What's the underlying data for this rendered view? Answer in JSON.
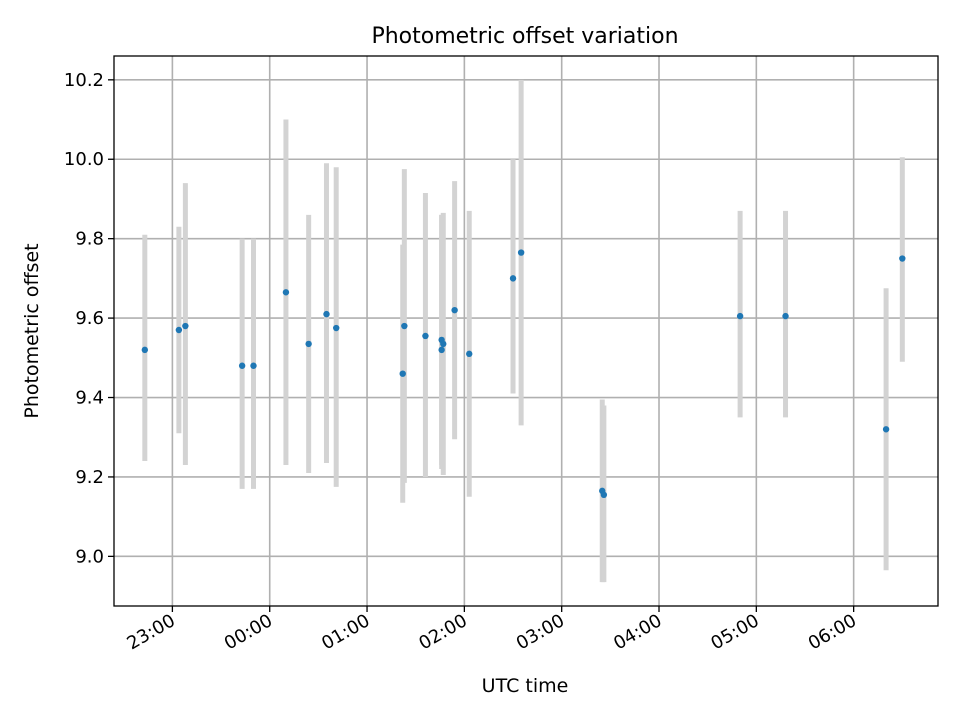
{
  "chart_data": {
    "type": "scatter",
    "title": "Photometric offset variation",
    "xlabel": "UTC time",
    "ylabel": "Photometric offset",
    "xlim": [
      "22:24",
      "06:52"
    ],
    "ylim": [
      8.875,
      10.26
    ],
    "yticks": [
      "9.0",
      "9.2",
      "9.4",
      "9.6",
      "9.8",
      "10.0",
      "10.2"
    ],
    "xticks": [
      "23:00",
      "00:00",
      "01:00",
      "02:00",
      "03:00",
      "04:00",
      "05:00",
      "06:00"
    ],
    "grid": true,
    "colors": {
      "marker": "#1f77b4",
      "errorbar": "#d3d3d3"
    },
    "series": [
      {
        "points": [
          {
            "t": "22:43",
            "y": 9.52,
            "lo": 9.24,
            "hi": 9.81
          },
          {
            "t": "23:04",
            "y": 9.57,
            "lo": 9.31,
            "hi": 9.83
          },
          {
            "t": "23:08",
            "y": 9.58,
            "lo": 9.23,
            "hi": 9.94
          },
          {
            "t": "23:43",
            "y": 9.48,
            "lo": 9.17,
            "hi": 9.8
          },
          {
            "t": "23:50",
            "y": 9.48,
            "lo": 9.17,
            "hi": 9.8
          },
          {
            "t": "00:10",
            "y": 9.665,
            "lo": 9.23,
            "hi": 10.1
          },
          {
            "t": "00:24",
            "y": 9.535,
            "lo": 9.21,
            "hi": 9.86
          },
          {
            "t": "00:35",
            "y": 9.61,
            "lo": 9.235,
            "hi": 9.99
          },
          {
            "t": "00:41",
            "y": 9.575,
            "lo": 9.175,
            "hi": 9.98
          },
          {
            "t": "01:22",
            "y": 9.46,
            "lo": 9.135,
            "hi": 9.785
          },
          {
            "t": "01:23",
            "y": 9.58,
            "lo": 9.185,
            "hi": 9.975
          },
          {
            "t": "01:36",
            "y": 9.555,
            "lo": 9.2,
            "hi": 9.915
          },
          {
            "t": "01:46",
            "y": 9.52,
            "lo": 9.22,
            "hi": 9.86
          },
          {
            "t": "01:46",
            "y": 9.545,
            "lo": 9.23,
            "hi": 9.86
          },
          {
            "t": "01:47",
            "y": 9.535,
            "lo": 9.205,
            "hi": 9.865
          },
          {
            "t": "01:54",
            "y": 9.62,
            "lo": 9.295,
            "hi": 9.945
          },
          {
            "t": "02:03",
            "y": 9.51,
            "lo": 9.15,
            "hi": 9.87
          },
          {
            "t": "02:30",
            "y": 9.7,
            "lo": 9.41,
            "hi": 10.0
          },
          {
            "t": "02:35",
            "y": 9.765,
            "lo": 9.33,
            "hi": 10.2
          },
          {
            "t": "03:25",
            "y": 9.165,
            "lo": 8.935,
            "hi": 9.395
          },
          {
            "t": "03:26",
            "y": 9.155,
            "lo": 8.935,
            "hi": 9.38
          },
          {
            "t": "04:50",
            "y": 9.605,
            "lo": 9.35,
            "hi": 9.87
          },
          {
            "t": "05:18",
            "y": 9.605,
            "lo": 9.35,
            "hi": 9.87
          },
          {
            "t": "06:20",
            "y": 9.32,
            "lo": 8.965,
            "hi": 9.675
          },
          {
            "t": "06:30",
            "y": 9.75,
            "lo": 9.49,
            "hi": 10.005
          }
        ]
      }
    ]
  }
}
